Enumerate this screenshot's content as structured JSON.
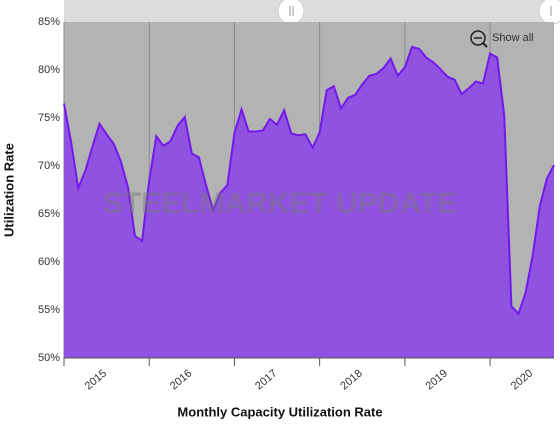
{
  "chart_data": {
    "type": "area",
    "x_title": "Monthly Capacity Utilization Rate",
    "y_title": "Utilization Rate",
    "watermark": "STEELMARKET UPDATE",
    "button": "Show all",
    "categories": [
      "2015",
      null,
      null,
      null,
      null,
      null,
      null,
      null,
      null,
      null,
      null,
      null,
      "2016",
      null,
      null,
      null,
      null,
      null,
      null,
      null,
      null,
      null,
      null,
      null,
      "2017",
      null,
      null,
      null,
      null,
      null,
      null,
      null,
      null,
      null,
      null,
      null,
      "2018",
      null,
      null,
      null,
      null,
      null,
      null,
      null,
      null,
      null,
      null,
      null,
      "2019",
      null,
      null,
      null,
      null,
      null,
      null,
      null,
      null,
      null,
      null,
      null,
      "2020",
      null,
      null,
      null,
      null,
      null,
      null,
      null,
      null,
      null
    ],
    "values": [
      76.5,
      72.5,
      67.7,
      69.5,
      72,
      74.4,
      73.3,
      72.3,
      70.5,
      67.8,
      62.7,
      62.2,
      68.5,
      73.1,
      72.1,
      72.6,
      74.2,
      75.1,
      71.3,
      70.9,
      68,
      65.4,
      67.2,
      68,
      73.4,
      75.9,
      73.6,
      73.6,
      73.7,
      74.9,
      74.3,
      75.8,
      73.4,
      73.2,
      73.3,
      71.9,
      73.5,
      77.9,
      78.3,
      76,
      77.1,
      77.4,
      78.5,
      79.4,
      79.6,
      80.2,
      81.2,
      79.4,
      80.3,
      82.4,
      82.2,
      81.3,
      80.8,
      80.1,
      79.3,
      79,
      77.5,
      78.1,
      78.8,
      78.6,
      81.7,
      81.3,
      75.2,
      55.4,
      54.6,
      56.8,
      60.7,
      65.8,
      68.7,
      70.1
    ],
    "color": "#9052e0",
    "line_color": "#7419ec",
    "background": "#b3b3b3",
    "ylim": [
      50,
      85
    ],
    "yticks": [
      {
        "value": 50,
        "label": "50%"
      },
      {
        "value": 55,
        "label": "55%"
      },
      {
        "value": 60,
        "label": "60%"
      },
      {
        "value": 65,
        "label": "65%"
      },
      {
        "value": 70,
        "label": "70%"
      },
      {
        "value": 75,
        "label": "75%"
      },
      {
        "value": 80,
        "label": "80%"
      },
      {
        "value": 85,
        "label": "85%"
      }
    ]
  }
}
